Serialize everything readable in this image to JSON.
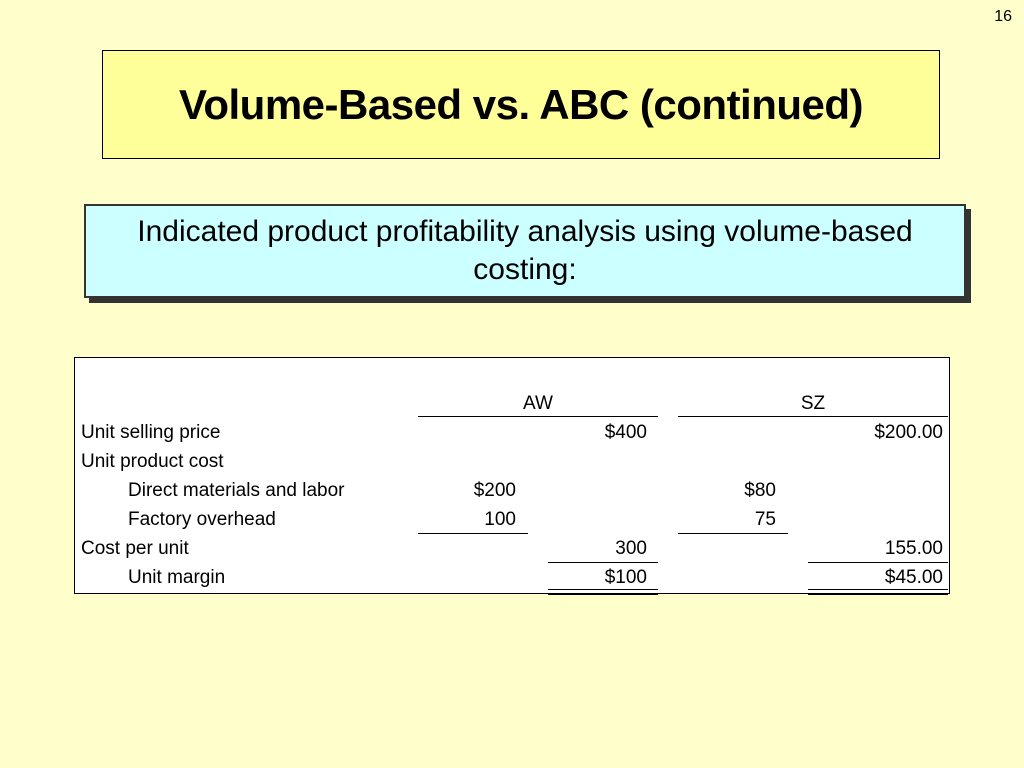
{
  "slide": {
    "number": "16",
    "title": "Volume-Based vs. ABC (continued)",
    "subtitle": "Indicated product profitability analysis using volume-based costing:"
  },
  "table": {
    "headers": {
      "aw": "AW",
      "sz": "SZ"
    },
    "rows": [
      {
        "label": "Unit selling price",
        "aw_detail": "",
        "aw_total": "$400",
        "sz_detail": "",
        "sz_total": "$200.00"
      },
      {
        "label": "Unit product cost",
        "aw_detail": "",
        "aw_total": "",
        "sz_detail": "",
        "sz_total": ""
      },
      {
        "label": "Direct materials and labor",
        "aw_detail": "$200",
        "aw_total": "",
        "sz_detail": "$80",
        "sz_total": ""
      },
      {
        "label": "Factory overhead",
        "aw_detail": "100",
        "aw_total": "",
        "sz_detail": "75",
        "sz_total": ""
      },
      {
        "label": "Cost per unit",
        "aw_detail": "",
        "aw_total": "300",
        "sz_detail": "",
        "sz_total": "155.00"
      },
      {
        "label": "Unit margin",
        "aw_detail": "",
        "aw_total": "$100",
        "sz_detail": "",
        "sz_total": "$45.00"
      }
    ]
  }
}
